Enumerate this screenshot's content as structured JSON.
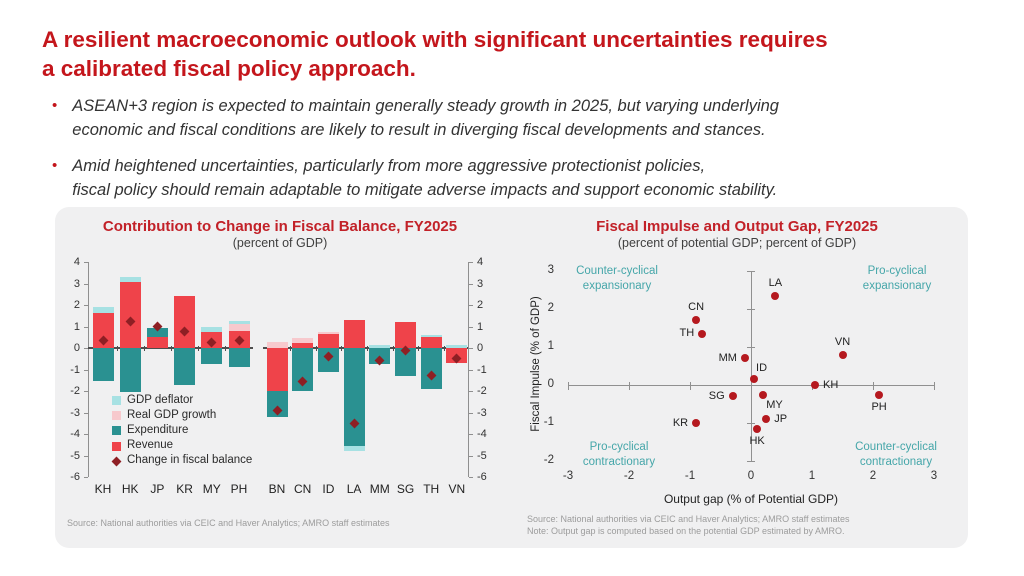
{
  "slide": {
    "title": "A resilient macroeconomic outlook with significant uncertainties requires\na calibrated fiscal policy approach.",
    "title_color": "#c4161c",
    "bullet_marker": "•",
    "bullets": [
      {
        "text": "ASEAN+3 region is expected to maintain generally steady growth in 2025, but varying underlying\neconomic and fiscal conditions are likely to result in diverging fiscal developments and stances."
      },
      {
        "text": "Amid heightened uncertainties, particularly from more aggressive protectionist policies,\nfiscal policy should remain adaptable to mitigate adverse impacts and support economic stability."
      }
    ],
    "panel_color": "#f0f0f1"
  },
  "chart_data": [
    {
      "type": "bar",
      "title": "Contribution to Change in Fiscal Balance, FY2025",
      "subtitle": "(percent of GDP)",
      "title_color": "#c22128",
      "ylim": [
        -6,
        4
      ],
      "yticks": [
        4,
        3,
        2,
        1,
        0,
        -1,
        -2,
        -3,
        -4,
        -5,
        -6
      ],
      "grid": false,
      "legend_position": "lower-left",
      "groups": [
        [
          "KH",
          "HK",
          "JP",
          "KR",
          "MY",
          "PH"
        ],
        [
          "BN",
          "CN",
          "ID",
          "LA",
          "MM",
          "SG",
          "TH",
          "VN"
        ]
      ],
      "series_order": [
        "revenue",
        "expenditure",
        "real_gdp_growth",
        "gdp_deflator"
      ],
      "series_colors": {
        "revenue": "#ef434a",
        "expenditure": "#2a9191",
        "real_gdp_growth": "#f7c9cd",
        "gdp_deflator": "#a7e1e3",
        "balance": "#8e1f24"
      },
      "legend": [
        {
          "label": "GDP deflator",
          "color": "#a7e1e3",
          "shape": "square"
        },
        {
          "label": "Real GDP growth",
          "color": "#f7c9cd",
          "shape": "square"
        },
        {
          "label": "Expenditure",
          "color": "#2a9191",
          "shape": "square"
        },
        {
          "label": "Revenue",
          "color": "#ef434a",
          "shape": "square"
        },
        {
          "label": "Change in fiscal balance",
          "color": "#8e1f24",
          "shape": "diamond"
        }
      ],
      "bars": [
        {
          "country": "KH",
          "revenue": 1.65,
          "expenditure": -1.55,
          "real_gdp_growth": 0,
          "gdp_deflator": 0.25,
          "balance": 0.35
        },
        {
          "country": "HK",
          "revenue": 3.05,
          "expenditure": -2.05,
          "real_gdp_growth": 0,
          "gdp_deflator": 0.25,
          "balance": 1.25
        },
        {
          "country": "JP",
          "revenue": 0.5,
          "expenditure": 0.45,
          "real_gdp_growth": 0,
          "gdp_deflator": 0,
          "balance": 1.0
        },
        {
          "country": "KR",
          "revenue": 2.4,
          "expenditure": -1.7,
          "real_gdp_growth": 0,
          "gdp_deflator": 0,
          "balance": 0.75
        },
        {
          "country": "MY",
          "revenue": 0.75,
          "expenditure": -0.75,
          "real_gdp_growth": 0,
          "gdp_deflator": 0.25,
          "balance": 0.25
        },
        {
          "country": "PH",
          "revenue": 0.8,
          "expenditure": -0.9,
          "real_gdp_growth": 0.3,
          "gdp_deflator": 0.15,
          "balance": 0.35
        },
        {
          "country": "BN",
          "revenue": -2.0,
          "expenditure": -1.2,
          "real_gdp_growth": 0.3,
          "gdp_deflator": 0,
          "balance": -2.9
        },
        {
          "country": "CN",
          "revenue": 0.25,
          "expenditure": -2.0,
          "real_gdp_growth": 0.2,
          "gdp_deflator": 0,
          "balance": -1.55
        },
        {
          "country": "ID",
          "revenue": 0.65,
          "expenditure": -1.1,
          "real_gdp_growth": 0.1,
          "gdp_deflator": 0,
          "balance": -0.4
        },
        {
          "country": "LA",
          "revenue": 1.3,
          "expenditure": -4.55,
          "real_gdp_growth": 0,
          "gdp_deflator": -0.25,
          "balance": -3.5
        },
        {
          "country": "MM",
          "revenue": 0,
          "expenditure": -0.75,
          "real_gdp_growth": 0,
          "gdp_deflator": 0.15,
          "balance": -0.6
        },
        {
          "country": "SG",
          "revenue": 1.2,
          "expenditure": -1.3,
          "real_gdp_growth": 0,
          "gdp_deflator": 0,
          "balance": -0.1
        },
        {
          "country": "TH",
          "revenue": 0.5,
          "expenditure": -1.9,
          "real_gdp_growth": 0,
          "gdp_deflator": 0.1,
          "balance": -1.3
        },
        {
          "country": "VN",
          "revenue": -0.7,
          "expenditure": 0,
          "real_gdp_growth": 0,
          "gdp_deflator": 0.15,
          "balance": -0.5
        }
      ],
      "source": "Source: National authorities via CEIC and Haver Analytics; AMRO staff estimates"
    },
    {
      "type": "scatter",
      "title": "Fiscal Impulse and Output Gap, FY2025",
      "subtitle": "(percent of potential GDP; percent of GDP)",
      "title_color": "#c22128",
      "xlabel": "Output gap (% of Potential GDP)",
      "ylabel": "Fiscal Impulse (% of GDP)",
      "xlim": [
        -3,
        3
      ],
      "ylim": [
        -2,
        3
      ],
      "xticks": [
        -3,
        -2,
        -1,
        0,
        1,
        2,
        3
      ],
      "yticks": [
        -2,
        -1,
        0,
        1,
        2,
        3
      ],
      "grid": false,
      "point_color": "#b5191f",
      "quadrant_label_color": "#45a6a9",
      "quadrant_labels": [
        {
          "text": "Counter-cyclical\nexpansionary",
          "position": "top-left"
        },
        {
          "text": "Pro-cyclical\nexpansionary",
          "position": "top-right"
        },
        {
          "text": "Pro-cyclical\ncontractionary",
          "position": "bottom-left"
        },
        {
          "text": "Counter-cyclical\ncontractionary",
          "position": "bottom-right"
        }
      ],
      "points": [
        {
          "label": "CN",
          "x": -0.9,
          "y": 1.7,
          "label_pos": "above"
        },
        {
          "label": "TH",
          "x": -0.8,
          "y": 1.35,
          "label_pos": "left"
        },
        {
          "label": "MM",
          "x": -0.1,
          "y": 0.7,
          "label_pos": "left"
        },
        {
          "label": "ID",
          "x": 0.05,
          "y": 0.15,
          "label_pos": "above-right"
        },
        {
          "label": "LA",
          "x": 0.4,
          "y": 2.35,
          "label_pos": "above"
        },
        {
          "label": "VN",
          "x": 1.5,
          "y": 0.8,
          "label_pos": "above"
        },
        {
          "label": "KH",
          "x": 1.05,
          "y": 0.0,
          "label_pos": "right"
        },
        {
          "label": "SG",
          "x": -0.3,
          "y": -0.3,
          "label_pos": "left"
        },
        {
          "label": "MY",
          "x": 0.2,
          "y": -0.25,
          "label_pos": "below-right"
        },
        {
          "label": "JP",
          "x": 0.25,
          "y": -0.9,
          "label_pos": "right"
        },
        {
          "label": "HK",
          "x": 0.1,
          "y": -1.15,
          "label_pos": "below"
        },
        {
          "label": "KR",
          "x": -0.9,
          "y": -1.0,
          "label_pos": "left"
        },
        {
          "label": "PH",
          "x": 2.1,
          "y": -0.25,
          "label_pos": "below"
        }
      ],
      "source": "Source: National authorities via CEIC and Haver Analytics; AMRO staff estimates",
      "note": "Note: Output gap is computed based on the potential GDP estimated by AMRO."
    }
  ]
}
